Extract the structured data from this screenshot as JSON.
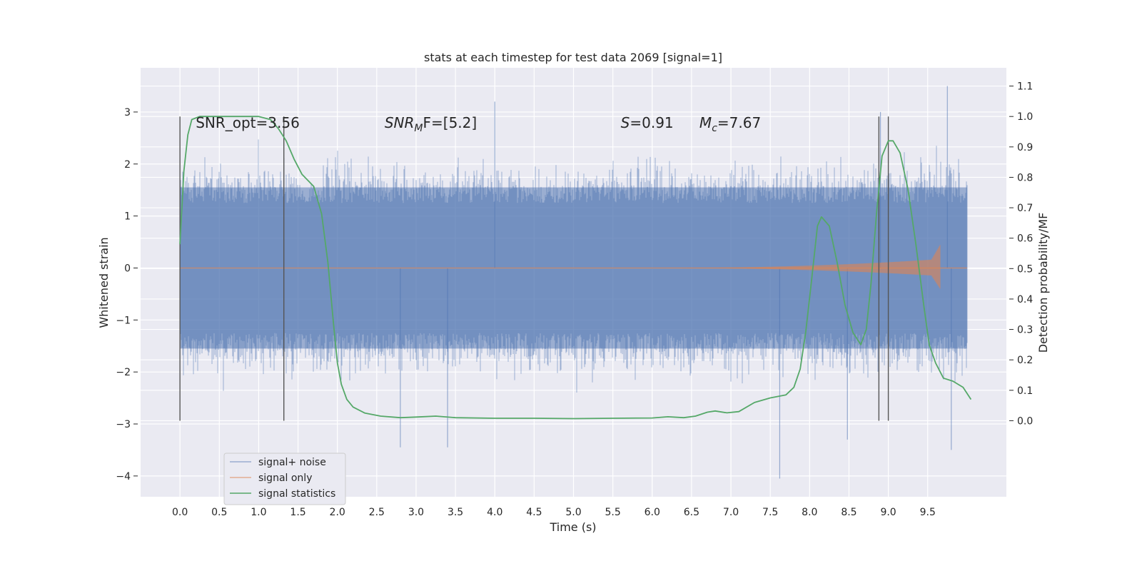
{
  "chart_data": {
    "type": "line",
    "title": "stats at each timestep for test data 2069 [signal=1]",
    "xlabel": "Time (s)",
    "ylabel_left": "Whitened strain",
    "ylabel_right": "Detection probability/MF",
    "xlim": [
      -0.5,
      10.5
    ],
    "ylim_left": [
      -4.4,
      3.85
    ],
    "ylim_right": [
      -0.25,
      1.16
    ],
    "x_ticks": [
      0.0,
      0.5,
      1.0,
      1.5,
      2.0,
      2.5,
      3.0,
      3.5,
      4.0,
      4.5,
      5.0,
      5.5,
      6.0,
      6.5,
      7.0,
      7.5,
      8.0,
      8.5,
      9.0,
      9.5
    ],
    "x_tick_labels": [
      "0.0",
      "0.5",
      "1.0",
      "1.5",
      "2.0",
      "2.5",
      "3.0",
      "3.5",
      "4.0",
      "4.5",
      "5.0",
      "5.5",
      "6.0",
      "6.5",
      "7.0",
      "7.5",
      "8.0",
      "8.5",
      "9.0",
      "9.5"
    ],
    "y_left_ticks": [
      3,
      2,
      1,
      0,
      -1,
      -2,
      -3,
      -4
    ],
    "y_left_tick_labels": [
      "3",
      "2",
      "1",
      "0",
      "−1",
      "−2",
      "−3",
      "−4"
    ],
    "y_right_ticks": [
      1.1,
      1.0,
      0.9,
      0.8,
      0.7,
      0.6,
      0.5,
      0.4,
      0.3,
      0.2,
      0.1,
      0.0
    ],
    "y_right_tick_labels": [
      "1.1",
      "1.0",
      "0.9",
      "0.8",
      "0.7",
      "0.6",
      "0.5",
      "0.4",
      "0.3",
      "0.2",
      "0.1",
      "0.0"
    ],
    "grid": true,
    "legend_position": "bottom-left",
    "colors": {
      "background": "#EAEAF2",
      "grid": "#FFFFFF",
      "noise": "#4C72B0",
      "signal": "#DD8452",
      "statistics": "#55A868",
      "markers": "#555555"
    },
    "series": [
      {
        "name": "signal+ noise",
        "kind": "noise_band",
        "axis": "left",
        "x_range": [
          0.0,
          10.0
        ],
        "typical_range": [
          -1.55,
          1.55
        ],
        "peak_max": 3.5,
        "peak_min": -4.05
      },
      {
        "name": "signal only",
        "kind": "chirp",
        "axis": "left",
        "start": 6.0,
        "end": 9.65,
        "max_amplitude": 0.45
      },
      {
        "name": "signal statistics",
        "kind": "line",
        "axis": "right",
        "points": [
          [
            0.0,
            0.58
          ],
          [
            0.05,
            0.82
          ],
          [
            0.1,
            0.94
          ],
          [
            0.15,
            0.99
          ],
          [
            0.25,
            1.0
          ],
          [
            0.5,
            1.0
          ],
          [
            0.8,
            1.0
          ],
          [
            1.0,
            1.0
          ],
          [
            1.15,
            0.99
          ],
          [
            1.25,
            0.96
          ],
          [
            1.35,
            0.92
          ],
          [
            1.45,
            0.86
          ],
          [
            1.55,
            0.81
          ],
          [
            1.7,
            0.77
          ],
          [
            1.8,
            0.68
          ],
          [
            1.88,
            0.52
          ],
          [
            1.95,
            0.32
          ],
          [
            2.0,
            0.19
          ],
          [
            2.05,
            0.12
          ],
          [
            2.12,
            0.07
          ],
          [
            2.2,
            0.045
          ],
          [
            2.35,
            0.025
          ],
          [
            2.55,
            0.015
          ],
          [
            2.8,
            0.01
          ],
          [
            3.0,
            0.012
          ],
          [
            3.25,
            0.015
          ],
          [
            3.5,
            0.01
          ],
          [
            4.0,
            0.008
          ],
          [
            4.5,
            0.008
          ],
          [
            5.0,
            0.007
          ],
          [
            5.5,
            0.008
          ],
          [
            6.0,
            0.009
          ],
          [
            6.2,
            0.013
          ],
          [
            6.4,
            0.01
          ],
          [
            6.55,
            0.015
          ],
          [
            6.7,
            0.028
          ],
          [
            6.8,
            0.032
          ],
          [
            6.95,
            0.026
          ],
          [
            7.1,
            0.03
          ],
          [
            7.3,
            0.06
          ],
          [
            7.5,
            0.075
          ],
          [
            7.7,
            0.085
          ],
          [
            7.8,
            0.11
          ],
          [
            7.88,
            0.17
          ],
          [
            7.95,
            0.29
          ],
          [
            8.02,
            0.45
          ],
          [
            8.1,
            0.64
          ],
          [
            8.15,
            0.67
          ],
          [
            8.25,
            0.64
          ],
          [
            8.35,
            0.52
          ],
          [
            8.45,
            0.38
          ],
          [
            8.55,
            0.29
          ],
          [
            8.65,
            0.25
          ],
          [
            8.72,
            0.3
          ],
          [
            8.78,
            0.45
          ],
          [
            8.85,
            0.68
          ],
          [
            8.92,
            0.87
          ],
          [
            9.0,
            0.92
          ],
          [
            9.06,
            0.92
          ],
          [
            9.15,
            0.88
          ],
          [
            9.25,
            0.76
          ],
          [
            9.35,
            0.58
          ],
          [
            9.45,
            0.38
          ],
          [
            9.52,
            0.25
          ],
          [
            9.6,
            0.19
          ],
          [
            9.7,
            0.14
          ],
          [
            9.82,
            0.13
          ],
          [
            9.95,
            0.11
          ],
          [
            10.05,
            0.07
          ]
        ]
      }
    ],
    "vertical_markers": [
      0.0,
      1.32,
      8.88,
      9.0
    ],
    "annotations": [
      {
        "text": "SNR_opt=3.56",
        "x": 0.2,
        "y": 2.7
      },
      {
        "text": "SNR",
        "sub": "M",
        "tail": "F=[5.2]",
        "italic": true,
        "x": 2.6,
        "y": 2.7
      },
      {
        "text": "S",
        "tail": "=0.91",
        "italic": true,
        "x": 5.6,
        "y": 2.7
      },
      {
        "text": "M",
        "sub": "c",
        "tail": "=7.67",
        "italic": true,
        "x": 6.6,
        "y": 2.7
      }
    ]
  }
}
